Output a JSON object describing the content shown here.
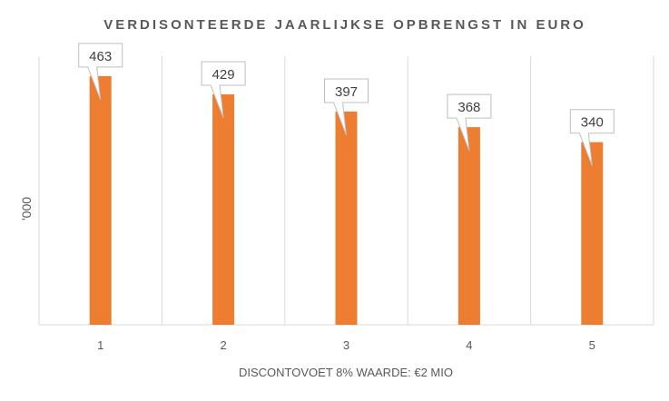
{
  "chart_data": {
    "type": "bar",
    "title": "VERDISONTEERDE JAARLIJKSE OPBRENGST IN EURO",
    "xlabel": "DISCONTOVOET 8% WAARDE: €2 MIO",
    "ylabel": "'000",
    "categories": [
      "1",
      "2",
      "3",
      "4",
      "5"
    ],
    "values": [
      463,
      429,
      397,
      368,
      340
    ],
    "data_labels": [
      "463",
      "429",
      "397",
      "368",
      "340"
    ],
    "ylim": [
      0,
      500
    ],
    "grid": "vertical",
    "bar_color": "#ED7D31"
  }
}
